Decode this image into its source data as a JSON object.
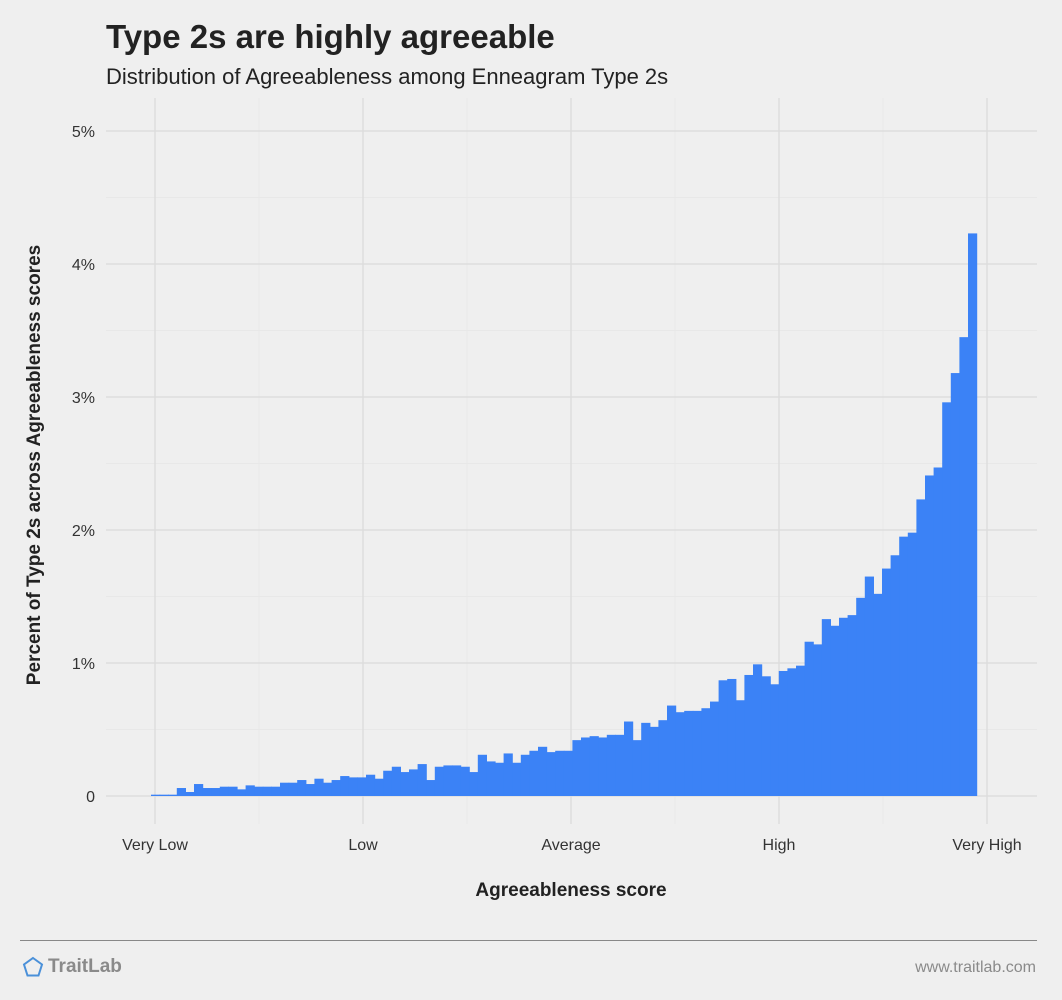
{
  "title": "Type 2s are highly agreeable",
  "subtitle": "Distribution of Agreeableness among Enneagram Type 2s",
  "footer": {
    "brand": "TraitLab",
    "url": "www.traitlab.com"
  },
  "colors": {
    "bar": "#3b82f6",
    "background": "#efefef",
    "grid": "#dddddd",
    "minor_grid": "#e6e6e6",
    "brand": "#4a90d9"
  },
  "chart_data": {
    "type": "bar",
    "title": "Type 2s are highly agreeable",
    "subtitle": "Distribution of Agreeableness among Enneagram Type 2s",
    "xlabel": "Agreeableness score",
    "ylabel": "Percent of Type 2s across Agreeableness scores",
    "x_ticks": [
      "Very Low",
      "Low",
      "Average",
      "High",
      "Very High"
    ],
    "y_ticks": [
      "0",
      "1%",
      "2%",
      "3%",
      "4%",
      "5%"
    ],
    "ylim": [
      0,
      5
    ],
    "unit": "%",
    "grid": true,
    "values": [
      0.01,
      0.01,
      0.01,
      0.06,
      0.03,
      0.09,
      0.06,
      0.06,
      0.07,
      0.07,
      0.05,
      0.08,
      0.07,
      0.07,
      0.07,
      0.1,
      0.1,
      0.12,
      0.09,
      0.13,
      0.1,
      0.12,
      0.15,
      0.14,
      0.14,
      0.16,
      0.13,
      0.19,
      0.22,
      0.18,
      0.2,
      0.24,
      0.12,
      0.22,
      0.23,
      0.23,
      0.22,
      0.18,
      0.31,
      0.26,
      0.25,
      0.32,
      0.25,
      0.31,
      0.34,
      0.37,
      0.33,
      0.34,
      0.34,
      0.42,
      0.44,
      0.45,
      0.44,
      0.46,
      0.46,
      0.56,
      0.42,
      0.55,
      0.52,
      0.57,
      0.68,
      0.63,
      0.64,
      0.64,
      0.66,
      0.71,
      0.87,
      0.88,
      0.72,
      0.91,
      0.99,
      0.9,
      0.84,
      0.94,
      0.96,
      0.98,
      1.16,
      1.14,
      1.33,
      1.28,
      1.34,
      1.36,
      1.49,
      1.65,
      1.52,
      1.71,
      1.81,
      1.95,
      1.98,
      2.23,
      2.41,
      2.47,
      2.96,
      3.18,
      3.45,
      4.23
    ]
  }
}
